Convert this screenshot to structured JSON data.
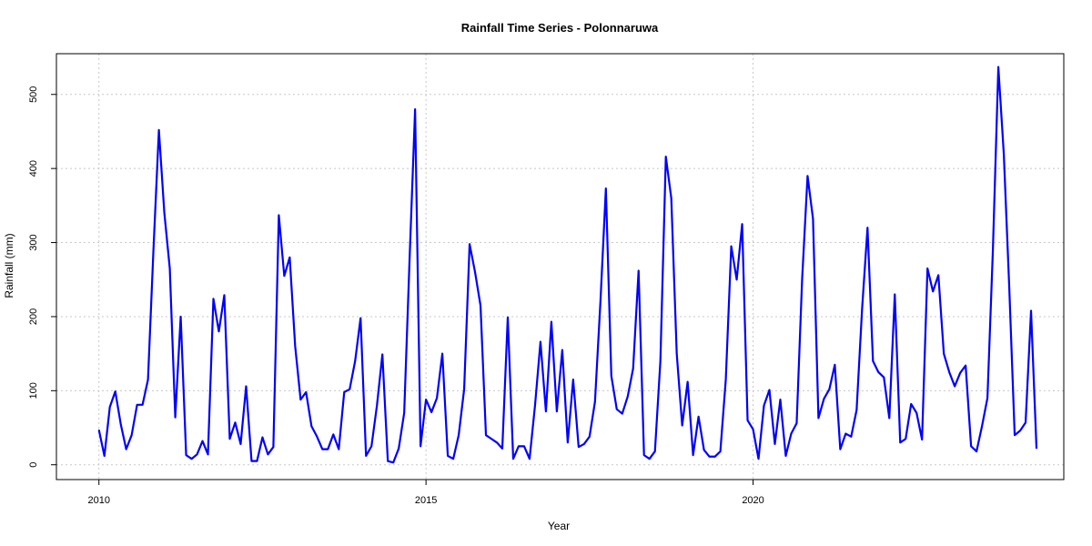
{
  "chart_data": {
    "type": "line",
    "title": "Rainfall Time Series - Polonnaruwa",
    "xlabel": "Year",
    "ylabel": "Rainfall (mm)",
    "x_ticks": [
      2010,
      2015,
      2020
    ],
    "y_ticks": [
      0,
      100,
      200,
      300,
      400,
      500
    ],
    "xlim": [
      2009.35,
      2024.75
    ],
    "ylim": [
      -20,
      555
    ],
    "grid": true,
    "series": [
      {
        "color": "#0000ff",
        "x_start": 2010.0,
        "x_step": 0.08333,
        "values": [
          47,
          12,
          78,
          99,
          55,
          21,
          40,
          81,
          81,
          115,
          290,
          452,
          340,
          265,
          64,
          200,
          13,
          8,
          14,
          32,
          14,
          224,
          180,
          229,
          35,
          57,
          28,
          106,
          5,
          5,
          37,
          14,
          24,
          337,
          255,
          280,
          160,
          88,
          98,
          52,
          38,
          21,
          21,
          41,
          21,
          98,
          102,
          140,
          198,
          12,
          25,
          80,
          149,
          5,
          3,
          22,
          70,
          280,
          480,
          25,
          88,
          71,
          90,
          150,
          12,
          8,
          40,
          102,
          298,
          260,
          215,
          40,
          35,
          30,
          22,
          199,
          8,
          25,
          25,
          8,
          80,
          166,
          72,
          193,
          72,
          155,
          30,
          115,
          24,
          28,
          38,
          85,
          220,
          373,
          120,
          75,
          69,
          92,
          130,
          262,
          13,
          8,
          18,
          140,
          416,
          360,
          150,
          53,
          112,
          13,
          65,
          20,
          11,
          11,
          18,
          115,
          295,
          250,
          325,
          60,
          48,
          8,
          80,
          101,
          28,
          88,
          12,
          42,
          56,
          250,
          390,
          332,
          63,
          89,
          102,
          135,
          21,
          42,
          38,
          74,
          210,
          320,
          140,
          125,
          118,
          63,
          230,
          30,
          35,
          82,
          70,
          34,
          265,
          234,
          256,
          150,
          125,
          106,
          124,
          134,
          25,
          18,
          52,
          90,
          290,
          537,
          420,
          240,
          40,
          46,
          57,
          208,
          22
        ]
      }
    ]
  }
}
